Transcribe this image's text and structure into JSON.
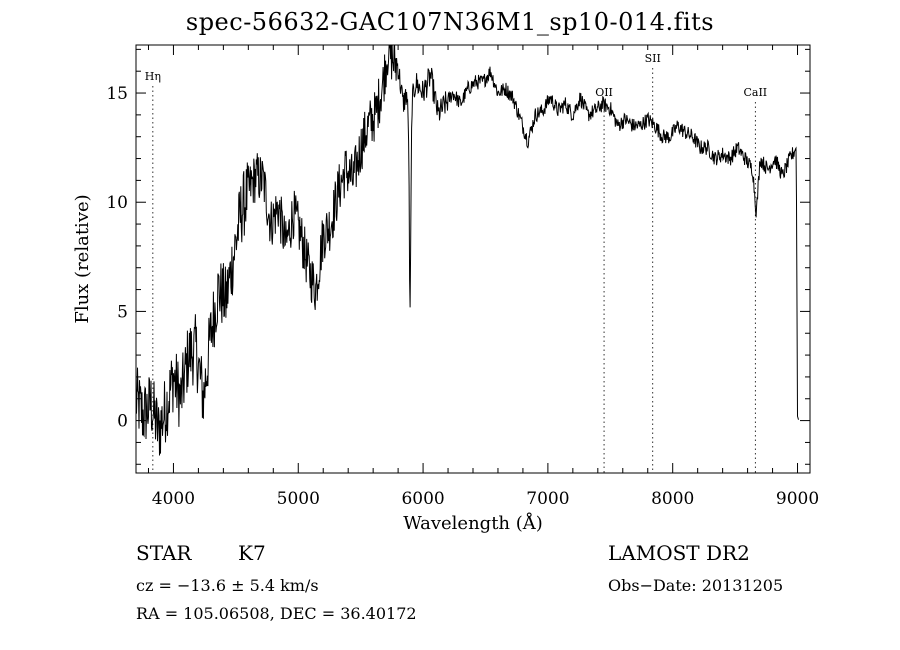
{
  "chart_data": {
    "type": "line",
    "title": "spec-56632-GAC107N36M1_sp10-014.fits",
    "xlabel": "Wavelength (Å)",
    "ylabel": "Flux (relative)",
    "xlim": [
      3700,
      9100
    ],
    "ylim": [
      -2.4,
      17.2
    ],
    "x_ticks": [
      4000,
      5000,
      6000,
      7000,
      8000,
      9000
    ],
    "x_tick_labels": [
      "4000",
      "5000",
      "6000",
      "7000",
      "8000",
      "9000"
    ],
    "y_ticks": [
      0,
      5,
      10,
      15
    ],
    "y_tick_labels": [
      "0",
      "5",
      "10",
      "15"
    ],
    "line_color": "#000000",
    "series": [
      {
        "x": [
          3700,
          3760,
          3820,
          3880,
          3940,
          4000,
          4060,
          4120,
          4180,
          4240,
          4300,
          4360,
          4420,
          4480,
          4540,
          4600,
          4660,
          4720,
          4780,
          4840,
          4900,
          4960,
          5020,
          5080,
          5140,
          5200,
          5260,
          5320,
          5380,
          5440,
          5500,
          5560,
          5620,
          5680,
          5720,
          5760,
          5800,
          5840,
          5870,
          5885,
          5895,
          5910,
          5940,
          6000,
          6060,
          6120,
          6180,
          6240,
          6300,
          6360,
          6420,
          6480,
          6540,
          6600,
          6660,
          6720,
          6780,
          6840,
          6900,
          6960,
          7020,
          7080,
          7140,
          7200,
          7260,
          7320,
          7380,
          7440,
          7500,
          7560,
          7620,
          7680,
          7740,
          7800,
          7860,
          7920,
          7980,
          8040,
          8100,
          8160,
          8220,
          8280,
          8340,
          8400,
          8460,
          8520,
          8580,
          8640,
          8670,
          8700,
          8760,
          8820,
          8880,
          8940,
          8990,
          9000,
          9010
        ],
        "y": [
          1.0,
          0.2,
          0.8,
          -0.5,
          0.6,
          2.0,
          1.0,
          3.0,
          3.3,
          1.0,
          4.0,
          6.0,
          5.5,
          7.5,
          9.5,
          10.5,
          11.2,
          11.0,
          9.0,
          9.8,
          8.0,
          9.5,
          8.5,
          7.0,
          6.0,
          8.5,
          9.0,
          10.5,
          11.5,
          11.0,
          12.5,
          13.5,
          14.0,
          15.5,
          17.0,
          16.5,
          16.2,
          14.5,
          15.0,
          13.0,
          4.0,
          14.5,
          15.5,
          15.0,
          15.8,
          14.0,
          14.5,
          15.0,
          14.5,
          15.2,
          15.5,
          15.5,
          16.0,
          15.0,
          15.2,
          14.8,
          13.8,
          12.8,
          14.0,
          14.2,
          14.8,
          14.2,
          14.5,
          14.0,
          14.8,
          14.0,
          14.2,
          14.5,
          14.3,
          13.5,
          13.8,
          13.5,
          13.5,
          13.8,
          13.5,
          13.0,
          13.0,
          13.5,
          13.2,
          13.0,
          12.5,
          12.5,
          12.0,
          12.2,
          12.0,
          12.5,
          12.0,
          11.5,
          9.5,
          12.0,
          11.5,
          12.0,
          11.2,
          12.0,
          12.5,
          0.2,
          0.0
        ]
      }
    ],
    "line_markers": [
      {
        "label": "Hη",
        "x": 3835
      },
      {
        "label": "OII",
        "x": 7450
      },
      {
        "label": "SII",
        "x": 7840
      },
      {
        "label": "CaII",
        "x": 8662
      }
    ]
  },
  "info": {
    "class_label": "STAR",
    "subclass_label": "K7",
    "cz_text": "cz = −13.6 ± 5.4 km/s",
    "coords_text": "RA = 105.06508, DEC =  36.40172",
    "survey_label": "LAMOST DR2",
    "obs_date_text": "Obs−Date: 20131205"
  }
}
